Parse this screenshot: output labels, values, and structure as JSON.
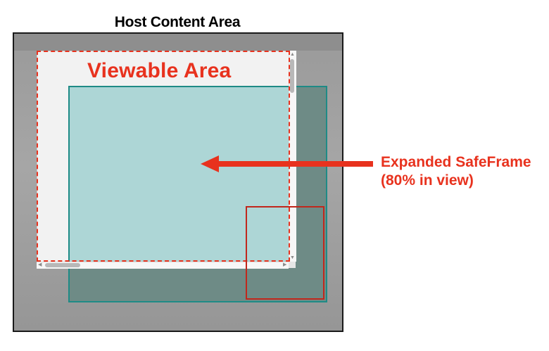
{
  "diagram": {
    "host_title": "Host Content Area",
    "viewable_title": "Viewable Area",
    "callout_line1": "Expanded SafeFrame",
    "callout_line2": "(80% in view)"
  },
  "colors": {
    "accent_red": "#e8321e",
    "frame_teal": "#1e8b86",
    "frame_fill_visible": "#add6d6",
    "frame_fill_hidden": "#6e8b86",
    "host_gray": "#a0a0a0"
  },
  "icons": {
    "pointer": "arrow-left-icon",
    "scroll_up": "chevron-up-icon",
    "scroll_down": "chevron-down-icon",
    "scroll_left": "chevron-left-icon",
    "scroll_right": "chevron-right-icon"
  }
}
